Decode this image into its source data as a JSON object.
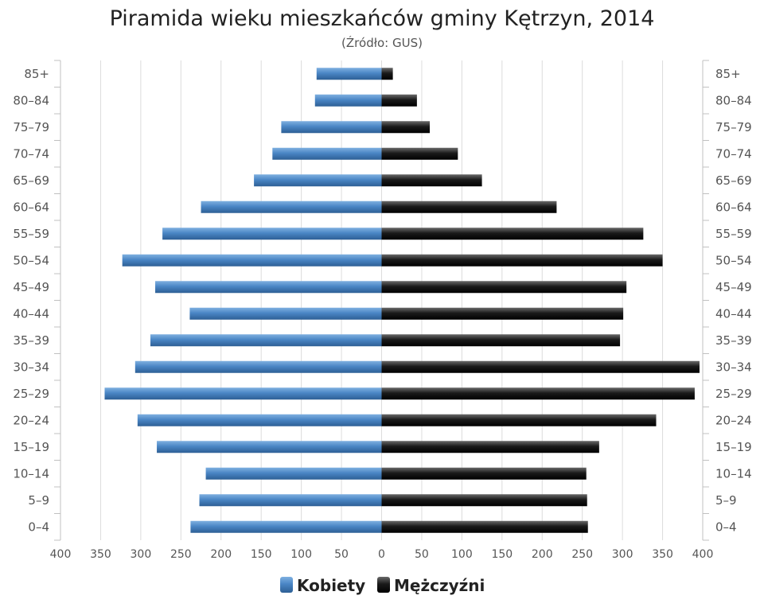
{
  "chart_data": {
    "type": "bar",
    "orientation": "horizontal",
    "title": "Piramida wieku mieszkańców gminy Kętrzyn, 2014",
    "subtitle": "(Źródło: GUS)",
    "categories": [
      "85+",
      "80–84",
      "75–79",
      "70–74",
      "65–69",
      "60–64",
      "55–59",
      "50–54",
      "45–49",
      "40–44",
      "35–39",
      "30–34",
      "25–29",
      "20–24",
      "15–19",
      "10–14",
      "5–9",
      "0–4"
    ],
    "series": [
      {
        "name": "Kobiety",
        "color": "#4a86c5",
        "values": [
          81,
          83,
          125,
          136,
          159,
          225,
          273,
          323,
          282,
          239,
          288,
          307,
          345,
          304,
          280,
          219,
          227,
          238
        ]
      },
      {
        "name": "Mężczyźni",
        "color": "#1a1a1a",
        "values": [
          14,
          44,
          60,
          95,
          125,
          218,
          326,
          350,
          305,
          301,
          297,
          396,
          390,
          342,
          271,
          255,
          256,
          257
        ]
      }
    ],
    "xlim": [
      -400,
      400
    ],
    "xticks": [
      400,
      350,
      300,
      250,
      200,
      150,
      100,
      50,
      0,
      50,
      100,
      150,
      200,
      250,
      300,
      350,
      400
    ],
    "grid": true,
    "legend_position": "bottom-center"
  }
}
